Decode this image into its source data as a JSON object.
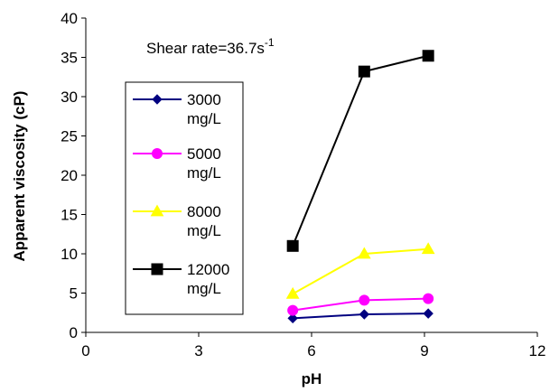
{
  "chart_data": {
    "type": "line",
    "xlabel": "pH",
    "ylabel": "Apparent viscosity (cP)",
    "xlim": [
      0,
      12
    ],
    "ylim": [
      0,
      40
    ],
    "xticks": [
      0,
      3,
      6,
      9,
      12
    ],
    "yticks": [
      0,
      5,
      10,
      15,
      20,
      25,
      30,
      35,
      40
    ],
    "grid": false,
    "legend_position": "left",
    "annotation": {
      "text": "Shear rate=36.7s",
      "superscript": "-1"
    },
    "series": [
      {
        "name_line1": "3000",
        "name_line2": "mg/L",
        "marker": "diamond",
        "color": "#000080",
        "x": [
          5.5,
          7.4,
          9.1
        ],
        "y": [
          1.8,
          2.3,
          2.4
        ]
      },
      {
        "name_line1": "5000",
        "name_line2": "mg/L",
        "marker": "circle",
        "color": "#ff00ff",
        "x": [
          5.5,
          7.4,
          9.1
        ],
        "y": [
          2.8,
          4.1,
          4.3
        ]
      },
      {
        "name_line1": "8000",
        "name_line2": "mg/L",
        "marker": "triangle",
        "color": "#ffff00",
        "x": [
          5.5,
          7.4,
          9.1
        ],
        "y": [
          4.9,
          10.0,
          10.6
        ]
      },
      {
        "name_line1": "12000",
        "name_line2": "mg/L",
        "marker": "square",
        "color": "#000000",
        "x": [
          5.5,
          7.4,
          9.1
        ],
        "y": [
          11.0,
          33.2,
          35.2
        ]
      }
    ]
  }
}
